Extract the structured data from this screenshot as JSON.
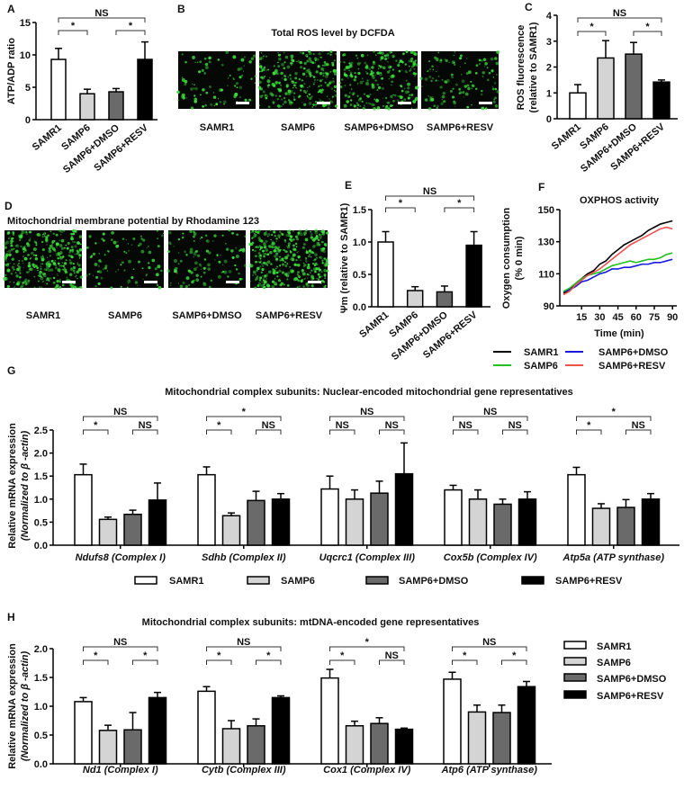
{
  "panel_labels": [
    "A",
    "B",
    "C",
    "D",
    "E",
    "F",
    "G",
    "H"
  ],
  "colors": {
    "SAMR1": "#ffffff",
    "SAMP6": "#d4d4d4",
    "SAMP6+DMSO": "#6a6a6a",
    "SAMP6+RESV": "#000000"
  },
  "groups": [
    "SAMR1",
    "SAMP6",
    "SAMP6+DMSO",
    "SAMP6+RESV"
  ],
  "micrographs": [
    {
      "panel": "B",
      "title": "Total ROS level by DCFDA",
      "labels": [
        "SAMR1",
        "SAMP6",
        "SAMP6+DMSO",
        "SAMP6+RESV"
      ],
      "stain_color": "#3cdc3c"
    },
    {
      "panel": "D",
      "title": "Mitochondrial membrane potential by Rhodamine 123",
      "labels": [
        "SAMR1",
        "SAMP6",
        "SAMP6+DMSO",
        "SAMP6+RESV"
      ],
      "stain_color": "#3cdc3c"
    }
  ],
  "chart_data": [
    {
      "panel": "A",
      "type": "bar",
      "ylabel": [
        "ATP/ADP ratio"
      ],
      "ylim": [
        0,
        15
      ],
      "yticks": [
        0,
        5,
        10,
        15
      ],
      "ytick_labels": [
        "0",
        "5",
        "10",
        "15"
      ],
      "categories": [
        "SAMR1",
        "SAMP6",
        "SAMP6+DMSO",
        "SAMP6+RESV"
      ],
      "genes": [
        {
          "values": [
            9.3,
            4.0,
            4.3,
            9.3
          ],
          "errors": [
            1.7,
            0.7,
            0.5,
            2.7
          ],
          "significance": [
            {
              "from": 0,
              "to": 3,
              "label": "NS",
              "level": 2
            },
            {
              "from": 0,
              "to": 1,
              "label": "*",
              "level": 1
            },
            {
              "from": 2,
              "to": 3,
              "label": "*",
              "level": 1
            }
          ]
        }
      ]
    },
    {
      "panel": "C",
      "type": "bar",
      "ylabel": [
        "ROS fluorescence",
        "(relative to SAMR1)"
      ],
      "ylim": [
        0,
        4
      ],
      "yticks": [
        0,
        1,
        2,
        3,
        4
      ],
      "ytick_labels": [
        "0",
        "1",
        "2",
        "3",
        "4"
      ],
      "categories": [
        "SAMR1",
        "SAMP6",
        "SAMP6+DMSO",
        "SAMP6+RESV"
      ],
      "genes": [
        {
          "values": [
            1.0,
            2.35,
            2.5,
            1.42
          ],
          "errors": [
            0.32,
            0.67,
            0.45,
            0.08
          ],
          "significance": [
            {
              "from": 0,
              "to": 3,
              "label": "NS",
              "level": 2
            },
            {
              "from": 0,
              "to": 1,
              "label": "*",
              "level": 1
            },
            {
              "from": 2,
              "to": 3,
              "label": "*",
              "level": 1
            }
          ]
        }
      ]
    },
    {
      "panel": "E",
      "type": "bar",
      "ylabel": [
        "Ψm (relative to SAMR1)"
      ],
      "ylim": [
        0,
        1.5
      ],
      "yticks": [
        0,
        0.5,
        1.0,
        1.5
      ],
      "ytick_labels": [
        "0.0",
        "0.5",
        "1.0",
        "1.5"
      ],
      "categories": [
        "SAMR1",
        "SAMP6",
        "SAMP6+DMSO",
        "SAMP6+RESV"
      ],
      "genes": [
        {
          "values": [
            1.0,
            0.25,
            0.23,
            0.95
          ],
          "errors": [
            0.16,
            0.06,
            0.09,
            0.21
          ],
          "significance": [
            {
              "from": 0,
              "to": 3,
              "label": "NS",
              "level": 2
            },
            {
              "from": 0,
              "to": 1,
              "label": "*",
              "level": 1
            },
            {
              "from": 2,
              "to": 3,
              "label": "*",
              "level": 1
            }
          ]
        }
      ]
    },
    {
      "panel": "F",
      "type": "line",
      "title": "OXPHOS activity",
      "ylabel": [
        "Oxygen consumption",
        "(% 0 min)"
      ],
      "xlabel": "Time (min)",
      "ylim": [
        90,
        150
      ],
      "yticks": [
        90,
        110,
        130,
        150
      ],
      "ytick_labels": [
        "90",
        "110",
        "130",
        "150"
      ],
      "xlim": [
        0,
        92
      ],
      "xticks": [
        15,
        30,
        45,
        60,
        75,
        90
      ],
      "xtick_labels": [
        "15",
        "30",
        "45",
        "60",
        "75",
        "90"
      ],
      "x": [
        0,
        5,
        10,
        15,
        20,
        25,
        30,
        35,
        40,
        45,
        50,
        55,
        60,
        65,
        70,
        75,
        80,
        85,
        90
      ],
      "series": [
        {
          "name": "SAMR1",
          "color": "#000000",
          "values": [
            98,
            100,
            104,
            107,
            110,
            112,
            116,
            118,
            122,
            125,
            128,
            130,
            132,
            134,
            137,
            139,
            141,
            142,
            143
          ]
        },
        {
          "name": "SAMP6+DMSO",
          "color": "#1a1adc",
          "values": [
            99,
            100,
            102,
            105,
            106,
            108,
            110,
            111,
            113,
            113,
            114,
            114,
            115,
            116,
            116,
            117,
            117,
            118,
            119
          ]
        },
        {
          "name": "SAMP6",
          "color": "#22c022",
          "values": [
            99,
            101,
            104,
            107,
            109,
            110,
            111,
            113,
            115,
            116,
            117,
            118,
            117,
            118,
            119,
            119,
            120,
            122,
            123
          ]
        },
        {
          "name": "SAMP6+RESV",
          "color": "#f05050",
          "values": [
            97,
            99,
            103,
            106,
            109,
            111,
            113,
            116,
            119,
            122,
            125,
            128,
            130,
            132,
            134,
            136,
            138,
            139,
            138
          ]
        }
      ]
    },
    {
      "panel": "G",
      "type": "bar",
      "title": "Mitochondrial complex subunits: Nuclear-encoded mitochondrial gene representatives",
      "ylabel": [
        "Relative mRNA expression",
        "(Normalized to β -actin)"
      ],
      "ylim": [
        0,
        2.5
      ],
      "yticks": [
        0,
        0.5,
        1.0,
        1.5,
        2.0,
        2.5
      ],
      "ytick_labels": [
        "0.0",
        "0.5",
        "1.0",
        "1.5",
        "2.0",
        "2.5"
      ],
      "legend": [
        "SAMR1",
        "SAMP6",
        "SAMP6+DMSO",
        "SAMP6+RESV"
      ],
      "genes": [
        {
          "name": "Ndufs8 (Complex I)",
          "values": [
            1.53,
            0.56,
            0.67,
            0.98
          ],
          "errors": [
            0.23,
            0.05,
            0.09,
            0.37
          ],
          "significance": [
            {
              "from": 0,
              "to": 3,
              "label": "NS",
              "level": 2
            },
            {
              "from": 0,
              "to": 1,
              "label": "*",
              "level": 1
            },
            {
              "from": 2,
              "to": 3,
              "label": "NS",
              "level": 1
            }
          ]
        },
        {
          "name": "Sdhb (Complex II)",
          "values": [
            1.53,
            0.64,
            0.97,
            1.0
          ],
          "errors": [
            0.17,
            0.06,
            0.2,
            0.12
          ],
          "significance": [
            {
              "from": 0,
              "to": 3,
              "label": "*",
              "level": 2
            },
            {
              "from": 0,
              "to": 1,
              "label": "*",
              "level": 1
            },
            {
              "from": 2,
              "to": 3,
              "label": "NS",
              "level": 1
            }
          ]
        },
        {
          "name": "Uqcrc1 (Complex III)",
          "values": [
            1.22,
            1.0,
            1.13,
            1.55
          ],
          "errors": [
            0.28,
            0.2,
            0.26,
            0.67
          ],
          "significance": [
            {
              "from": 0,
              "to": 3,
              "label": "NS",
              "level": 2
            },
            {
              "from": 0,
              "to": 1,
              "label": "NS",
              "level": 1
            },
            {
              "from": 2,
              "to": 3,
              "label": "NS",
              "level": 1
            }
          ]
        },
        {
          "name": "Cox5b (Complex IV)",
          "values": [
            1.2,
            1.0,
            0.89,
            1.0
          ],
          "errors": [
            0.1,
            0.2,
            0.11,
            0.16
          ],
          "significance": [
            {
              "from": 0,
              "to": 3,
              "label": "NS",
              "level": 2
            },
            {
              "from": 0,
              "to": 1,
              "label": "NS",
              "level": 1
            },
            {
              "from": 2,
              "to": 3,
              "label": "NS",
              "level": 1
            }
          ]
        },
        {
          "name": "Atp5a (ATP synthase)",
          "values": [
            1.53,
            0.8,
            0.82,
            1.0
          ],
          "errors": [
            0.16,
            0.1,
            0.17,
            0.12
          ],
          "significance": [
            {
              "from": 0,
              "to": 3,
              "label": "*",
              "level": 2
            },
            {
              "from": 0,
              "to": 1,
              "label": "*",
              "level": 1
            },
            {
              "from": 2,
              "to": 3,
              "label": "NS",
              "level": 1
            }
          ]
        }
      ]
    },
    {
      "panel": "H",
      "type": "bar",
      "title": "Mitochondrial complex subunits: mtDNA-encoded gene representatives",
      "ylabel": [
        "Relative mRNA expression",
        "(Normalized to β -actin)"
      ],
      "ylim": [
        0,
        2.0
      ],
      "yticks": [
        0,
        0.5,
        1.0,
        1.5,
        2.0
      ],
      "ytick_labels": [
        "0.0",
        "0.5",
        "1.0",
        "1.5",
        "2.0"
      ],
      "legend": [
        "SAMR1",
        "SAMP6",
        "SAMP6+DMSO",
        "SAMP6+RESV"
      ],
      "genes": [
        {
          "name": "Nd1 (Complex I)",
          "values": [
            1.08,
            0.58,
            0.59,
            1.15
          ],
          "errors": [
            0.07,
            0.09,
            0.3,
            0.09
          ],
          "significance": [
            {
              "from": 0,
              "to": 3,
              "label": "NS",
              "level": 2
            },
            {
              "from": 0,
              "to": 1,
              "label": "*",
              "level": 1
            },
            {
              "from": 2,
              "to": 3,
              "label": "*",
              "level": 1
            }
          ]
        },
        {
          "name": "Cytb (Complex III)",
          "values": [
            1.26,
            0.61,
            0.66,
            1.15
          ],
          "errors": [
            0.08,
            0.14,
            0.12,
            0.03
          ],
          "significance": [
            {
              "from": 0,
              "to": 3,
              "label": "NS",
              "level": 2
            },
            {
              "from": 0,
              "to": 1,
              "label": "*",
              "level": 1
            },
            {
              "from": 2,
              "to": 3,
              "label": "*",
              "level": 1
            }
          ]
        },
        {
          "name": "Cox1 (Complex IV)",
          "values": [
            1.49,
            0.66,
            0.7,
            0.6
          ],
          "errors": [
            0.15,
            0.08,
            0.1,
            0.02
          ],
          "significance": [
            {
              "from": 0,
              "to": 3,
              "label": "*",
              "level": 2
            },
            {
              "from": 0,
              "to": 1,
              "label": "*",
              "level": 1
            },
            {
              "from": 2,
              "to": 3,
              "label": "NS",
              "level": 1
            }
          ]
        },
        {
          "name": "Atp6 (ATP synthase)",
          "values": [
            1.47,
            0.9,
            0.89,
            1.34
          ],
          "errors": [
            0.12,
            0.12,
            0.13,
            0.09
          ],
          "significance": [
            {
              "from": 0,
              "to": 3,
              "label": "NS",
              "level": 2
            },
            {
              "from": 0,
              "to": 1,
              "label": "*",
              "level": 1
            },
            {
              "from": 2,
              "to": 3,
              "label": "*",
              "level": 1
            }
          ]
        }
      ]
    }
  ]
}
